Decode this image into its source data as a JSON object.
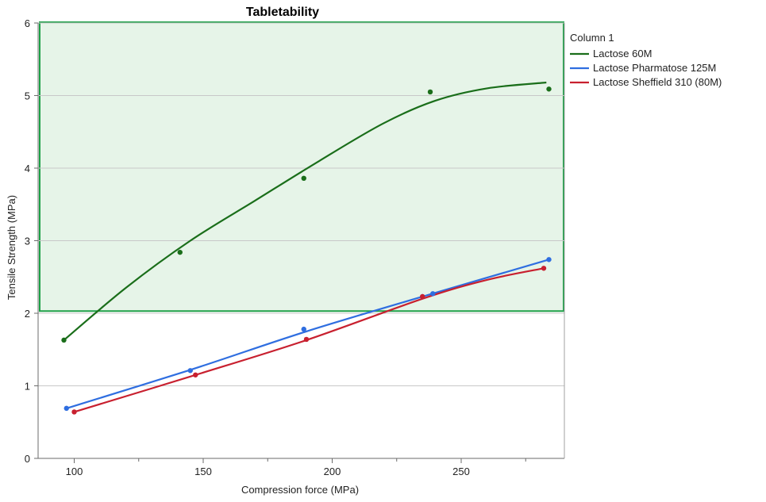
{
  "chart_data": {
    "type": "line",
    "title": "Tabletability",
    "xlabel": "Compression force (MPa)",
    "ylabel": "Tensile Strength (MPa)",
    "xlim": [
      86,
      290
    ],
    "ylim": [
      0,
      6
    ],
    "xticks": [
      100,
      150,
      200,
      250
    ],
    "yticks": [
      0,
      1,
      2,
      3,
      4,
      5,
      6
    ],
    "x_minor_ticks": [
      125,
      175,
      225,
      275
    ],
    "grid": "horizontal",
    "legend": {
      "title": "Column 1",
      "placement": "right",
      "entries": [
        "Lactose 60M",
        "Lactose Pharmatose 125M",
        "Lactose Sheffield 310 (80M)"
      ]
    },
    "highlight_region": {
      "y_min": 2.03,
      "y_max": 6,
      "fill": "#e6f4e8",
      "stroke": "#1ea048"
    },
    "series": [
      {
        "name": "Lactose 60M",
        "color": "#1a6e1a",
        "points": [
          [
            96,
            1.63
          ],
          [
            141,
            2.84
          ],
          [
            189,
            3.86
          ],
          [
            238,
            5.05
          ],
          [
            284,
            5.09
          ]
        ],
        "curve": [
          [
            96,
            1.63
          ],
          [
            120,
            2.35
          ],
          [
            145,
            3.0
          ],
          [
            170,
            3.55
          ],
          [
            195,
            4.1
          ],
          [
            220,
            4.62
          ],
          [
            240,
            4.93
          ],
          [
            260,
            5.1
          ],
          [
            283,
            5.18
          ]
        ]
      },
      {
        "name": "Lactose Pharmatose 125M",
        "color": "#2f6ee0",
        "points": [
          [
            97,
            0.69
          ],
          [
            145,
            1.21
          ],
          [
            189,
            1.78
          ],
          [
            235,
            2.23
          ],
          [
            239,
            2.27
          ],
          [
            284,
            2.74
          ]
        ],
        "curve": [
          [
            97,
            0.69
          ],
          [
            145,
            1.22
          ],
          [
            190,
            1.75
          ],
          [
            237,
            2.25
          ],
          [
            284,
            2.74
          ]
        ]
      },
      {
        "name": "Lactose Sheffield 310 (80M)",
        "color": "#c8202f",
        "points": [
          [
            100,
            0.64
          ],
          [
            147,
            1.15
          ],
          [
            190,
            1.64
          ],
          [
            235,
            2.23
          ],
          [
            282,
            2.62
          ]
        ],
        "curve": [
          [
            100,
            0.64
          ],
          [
            147,
            1.15
          ],
          [
            190,
            1.63
          ],
          [
            235,
            2.2
          ],
          [
            260,
            2.46
          ],
          [
            282,
            2.62
          ]
        ]
      }
    ]
  }
}
